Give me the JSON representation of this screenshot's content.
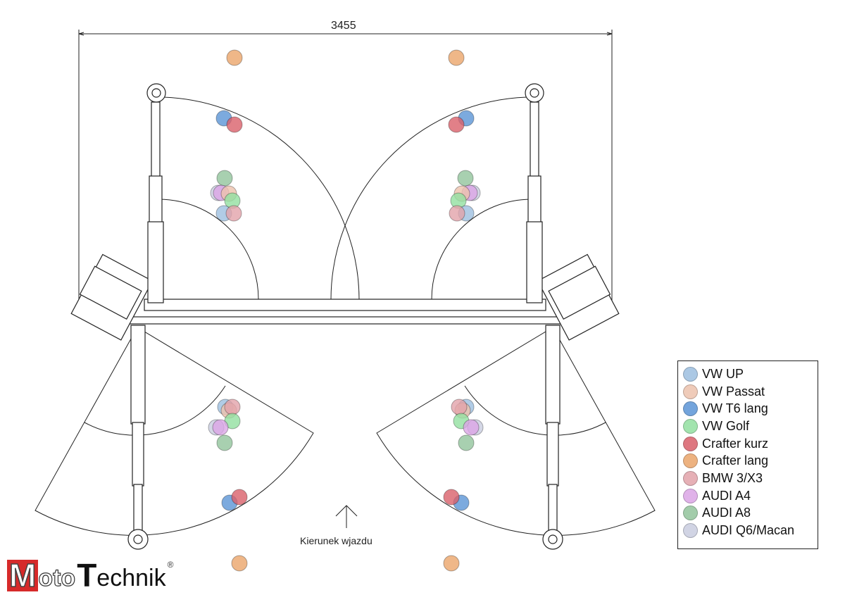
{
  "dimension_label": "3455",
  "direction_label": "Kierunek wjazdu",
  "legend": [
    {
      "label": "VW UP",
      "color": "#9dbfe0"
    },
    {
      "label": "VW Passat",
      "color": "#edc2ad"
    },
    {
      "label": "VW T6 lang",
      "color": "#5b95d6"
    },
    {
      "label": "VW Golf",
      "color": "#92e0a0"
    },
    {
      "label": "Crafter kurz",
      "color": "#d9606a"
    },
    {
      "label": "Crafter lang",
      "color": "#eba56a"
    },
    {
      "label": "BMW 3/X3",
      "color": "#e2a3aa"
    },
    {
      "label": "AUDI A4",
      "color": "#dba5e6"
    },
    {
      "label": "AUDI A8",
      "color": "#92c49c"
    },
    {
      "label": "AUDI Q6/Macan",
      "color": "#c9cde0"
    }
  ],
  "logo": {
    "m": "M",
    "oto": "oto",
    "t": "T",
    "echnik": "echnik",
    "registered": "®"
  }
}
